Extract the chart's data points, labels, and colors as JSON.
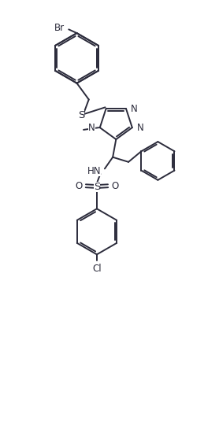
{
  "figure_width": 2.78,
  "figure_height": 5.35,
  "dpi": 100,
  "background_color": "#ffffff",
  "line_color": "#2b2b3b",
  "line_width": 1.4,
  "font_size": 8.5,
  "xlim": [
    0,
    10
  ],
  "ylim": [
    0,
    19
  ]
}
